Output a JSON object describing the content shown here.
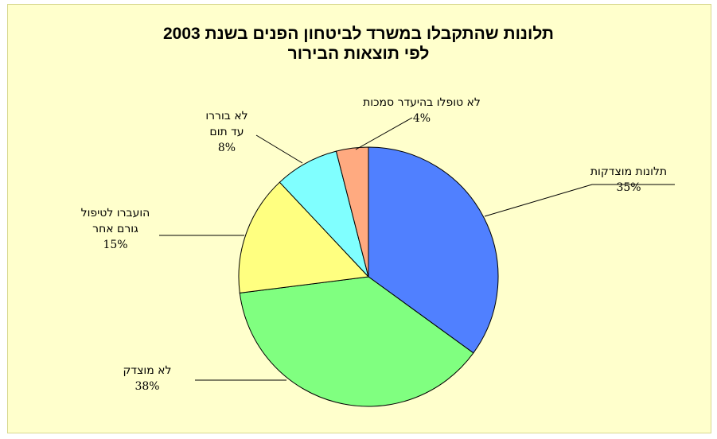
{
  "chart_data": {
    "type": "pie",
    "title_lines": [
      "תלונות שהתקבלו במשרד לביטחון הפנים בשנת 2003",
      "לפי תוצאות הבירור"
    ],
    "slices": [
      {
        "name_lines": [
          "תלונות מוצדקות"
        ],
        "value": 35,
        "pct_label": "35%",
        "color": "#5080ff"
      },
      {
        "name_lines": [
          "לא מוצדק"
        ],
        "value": 38,
        "pct_label": "38%",
        "color": "#80ff80"
      },
      {
        "name_lines": [
          "הועברו לטיפול",
          "גורם אחר"
        ],
        "value": 15,
        "pct_label": "15%",
        "color": "#ffff80"
      },
      {
        "name_lines": [
          "לא בוררו",
          "עד תום"
        ],
        "value": 8,
        "pct_label": "8%",
        "color": "#80ffff"
      },
      {
        "name_lines": [
          "לא טופלו בהיעדר סמכות"
        ],
        "value": 4,
        "pct_label": "4%",
        "color": "#ffaa80"
      }
    ],
    "start": "12 o'clock",
    "direction": "clockwise",
    "legend": "none"
  }
}
